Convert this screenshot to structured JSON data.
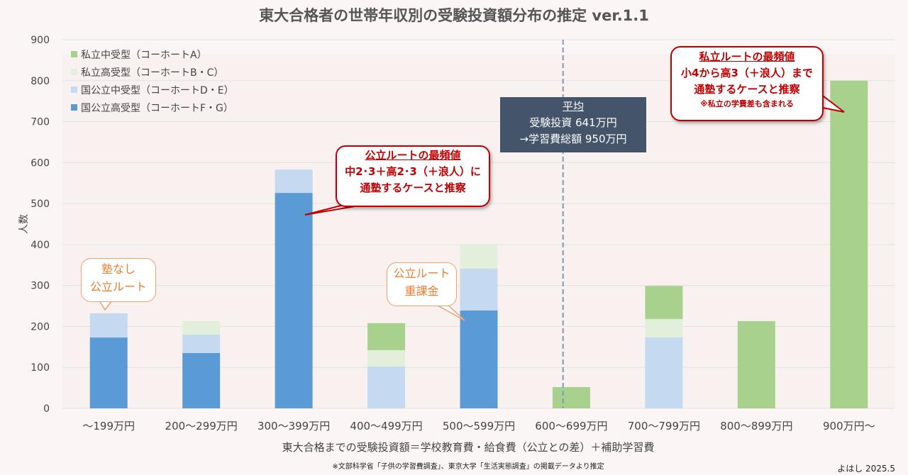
{
  "chart_data": {
    "type": "bar",
    "stacked": true,
    "title": "東大合格者の世帯年収別の受験投資額分布の推定 ver.1.1",
    "xlabel": "東大合格までの受験投資額＝学校教育費・給食費（公立との差）＋補助学習費",
    "ylabel": "人数",
    "ylim": [
      0,
      900
    ],
    "yticks": [
      0,
      100,
      200,
      300,
      400,
      500,
      600,
      700,
      800,
      900
    ],
    "grid": true,
    "legend_position": "top-left",
    "categories": [
      "～199万円",
      "200～299万円",
      "300～399万円",
      "400～499万円",
      "500～599万円",
      "600～699万円",
      "700～799万円",
      "800～899万円",
      "900万円～"
    ],
    "series": [
      {
        "name": "国公立高受型（コーホートF・G）",
        "color": "#5b9bd5",
        "values": [
          173,
          135,
          526,
          0,
          239,
          0,
          0,
          0,
          0
        ]
      },
      {
        "name": "国公立中受型（コーホートD・E）",
        "color": "#c5daf0",
        "values": [
          59,
          45,
          57,
          102,
          102,
          0,
          173,
          0,
          0
        ]
      },
      {
        "name": "私立高受型（コーホートB・C）",
        "color": "#e2efda",
        "values": [
          0,
          33,
          0,
          40,
          60,
          0,
          45,
          0,
          0
        ]
      },
      {
        "name": "私立中受型（コーホートA）",
        "color": "#a9d18e",
        "values": [
          0,
          0,
          0,
          66,
          0,
          52,
          81,
          213,
          800
        ]
      }
    ],
    "legend_order": [
      3,
      2,
      1,
      0
    ],
    "average_line_value": 641
  },
  "annotations": {
    "average": {
      "title": "平均",
      "line1": "受験投資 641万円",
      "line2": "→学習費総額 950万円"
    },
    "public_mode": {
      "title": "公立ルートの最頻値",
      "line1": "中2･3＋高2･3（＋浪人）に",
      "line2": "通塾するケースと推察"
    },
    "private_mode": {
      "title": "私立ルートの最頻値",
      "line1": "小4から高3（＋浪人）まで",
      "line2": "通塾するケースと推察",
      "note": "※私立の学費差も含まれる"
    },
    "no_juku": {
      "line1": "塾なし",
      "line2": "公立ルート"
    },
    "heavy": {
      "line1": "公立ルート",
      "line2": "重課金"
    }
  },
  "source": "※文部科学省「子供の学習費調査」、東京大学「生活実態調査」の掲載データより推定",
  "author": "よはし 2025.5"
}
